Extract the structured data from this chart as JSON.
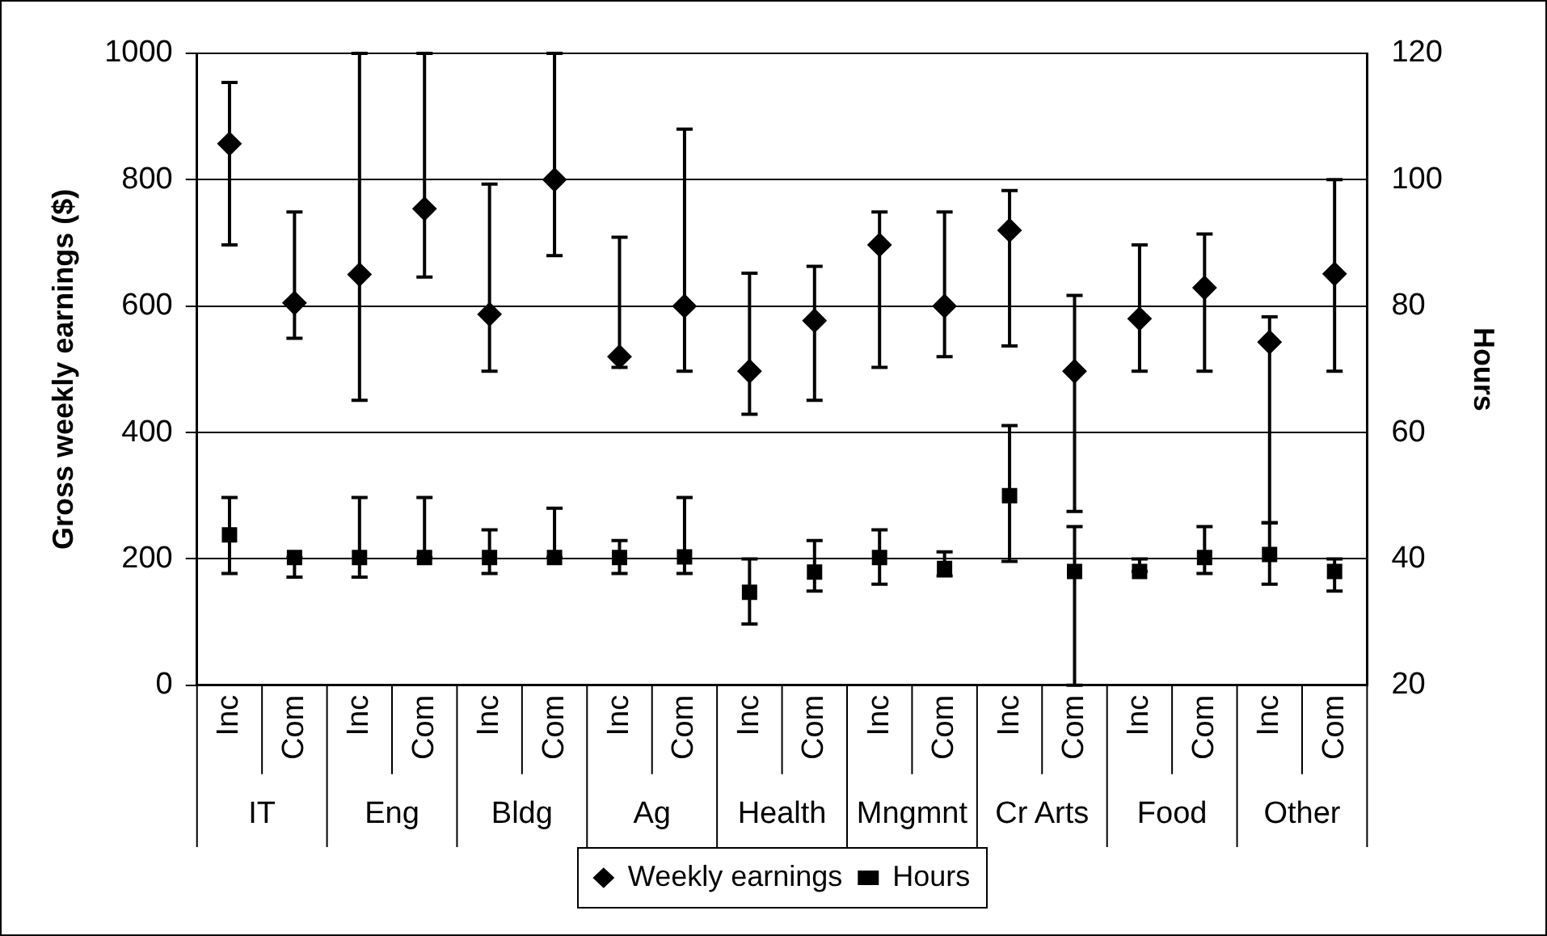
{
  "chart_data": {
    "type": "scatter",
    "ylabel": "Gross weekly earnings ($)",
    "y2label": "Hours",
    "categories": [
      "Inc",
      "Com",
      "Inc",
      "Com",
      "Inc",
      "Com",
      "Inc",
      "Com",
      "Inc",
      "Com",
      "Inc",
      "Com",
      "Inc",
      "Com",
      "Inc",
      "Com",
      "Inc",
      "Com"
    ],
    "annotations": [
      "IT",
      "Eng",
      "Bldg",
      "Ag",
      "Health",
      "Mngmnt",
      "Cr Arts",
      "Food",
      "Other"
    ],
    "series": [
      {
        "name": "Weekly earnings",
        "color": "#000000",
        "marker": "diamond",
        "values": [
          857,
          605,
          650,
          754,
          587,
          800,
          520,
          600,
          497,
          577,
          697,
          600,
          720,
          497,
          580,
          629,
          543,
          651
        ],
        "errors": [
          [
            697,
            954
          ],
          [
            549,
            749
          ],
          [
            451,
            1000
          ],
          [
            646,
            1000
          ],
          [
            497,
            793
          ],
          [
            680,
            1000
          ],
          [
            503,
            709
          ],
          [
            497,
            880
          ],
          [
            429,
            652
          ],
          [
            451,
            663
          ],
          [
            503,
            749
          ],
          [
            520,
            749
          ],
          [
            537,
            783
          ],
          [
            275,
            617
          ],
          [
            497,
            697
          ],
          [
            497,
            714
          ],
          [
            257,
            583
          ],
          [
            497,
            800
          ]
        ]
      },
      {
        "name": "Hours",
        "color": "#000000",
        "marker": "square",
        "axis": "y2",
        "values": [
          43.8,
          40.2,
          40.2,
          40.2,
          40.2,
          40.2,
          40.2,
          40.3,
          34.7,
          37.9,
          40.2,
          38.5,
          50,
          38,
          38,
          40.2,
          40.7,
          38
        ],
        "errors": [
          [
            37.7,
            49.7
          ],
          [
            37.1,
            40.2
          ],
          [
            37.1,
            49.7
          ],
          [
            40.2,
            49.7
          ],
          [
            37.7,
            44.6
          ],
          [
            40.2,
            48
          ],
          [
            37.7,
            42.9
          ],
          [
            37.7,
            49.7
          ],
          [
            29.7,
            40
          ],
          [
            34.9,
            42.9
          ],
          [
            36,
            44.6
          ],
          [
            37.3,
            41.1
          ],
          [
            39.6,
            61.1
          ],
          [
            20,
            45.1
          ],
          [
            38,
            40
          ],
          [
            37.7,
            45.1
          ],
          [
            36,
            45.7
          ],
          [
            34.9,
            40
          ]
        ]
      }
    ],
    "ylim": [
      0,
      1000
    ],
    "yticks": [
      0,
      200,
      400,
      600,
      800,
      1000
    ],
    "y2lim": [
      20,
      120
    ],
    "y2ticks": [
      20,
      40,
      60,
      80,
      100,
      120
    ],
    "grid": "y",
    "legend": "bottom"
  }
}
